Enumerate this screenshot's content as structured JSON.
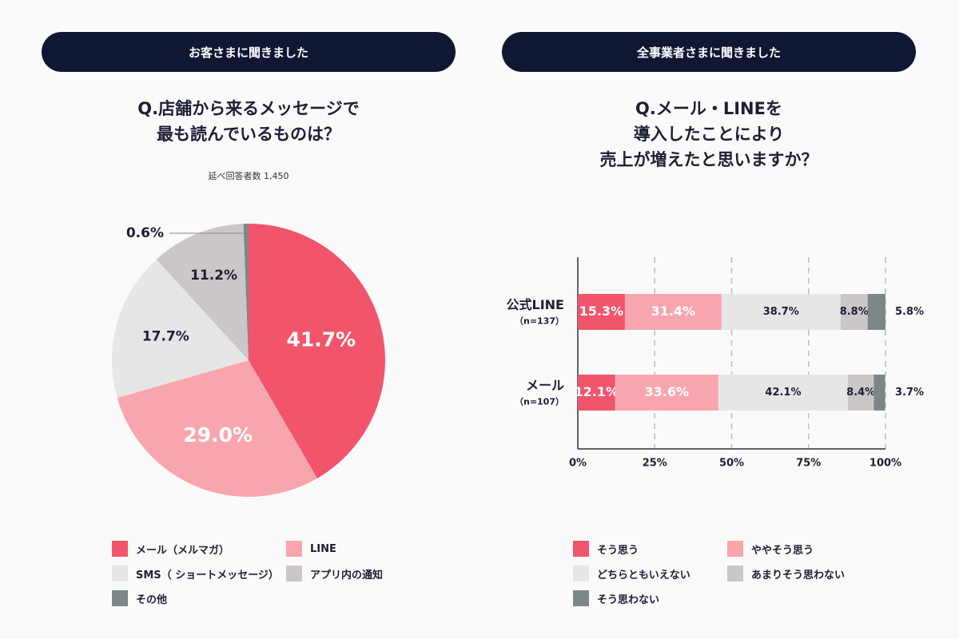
{
  "left": {
    "header": "お客さまに聞きました",
    "title_line1": "Q.店舗から来るメッセージで",
    "title_line2": "最も読んでいるものは？",
    "note": "延べ回答者数 1,450"
  },
  "right": {
    "header": "全事業者さまに聞きました",
    "title_line1": "Q.メール・LINEを",
    "title_line2": "導入したことにより",
    "title_line3": "売上が増えたと思いますか？"
  },
  "legend_left": [
    {
      "label": "メール（メルマガ）",
      "color": "#f2546b"
    },
    {
      "label": "LINE",
      "color": "#f8a6ae"
    },
    {
      "label": "SMS（ ショートメッセージ）",
      "color": "#e6e6e6"
    },
    {
      "label": "アプリ内の通知",
      "color": "#cbc7c7"
    },
    {
      "label": "その他",
      "color": "#7d8787"
    }
  ],
  "legend_right": [
    {
      "label": "そう思う",
      "color": "#f2546b"
    },
    {
      "label": "ややそう思う",
      "color": "#f8a6ae"
    },
    {
      "label": "どちらともいえない",
      "color": "#e6e6e6"
    },
    {
      "label": "あまりそう思わない",
      "color": "#cbc7c7"
    },
    {
      "label": "そう思わない",
      "color": "#7d8787"
    }
  ],
  "chart_data": [
    {
      "type": "pie",
      "title": "Q.店舗から来るメッセージで最も読んでいるものは？",
      "categories": [
        "メール（メルマガ）",
        "LINE",
        "SMS（ ショートメッセージ）",
        "アプリ内の通知",
        "その他"
      ],
      "values": [
        41.7,
        29.0,
        17.7,
        11.2,
        0.6
      ],
      "labels": [
        "41.7%",
        "29.0%",
        "17.7%",
        "11.2%",
        "0.6%"
      ],
      "colors": [
        "#f2546b",
        "#f8a6ae",
        "#e6e6e6",
        "#cbc7c7",
        "#7d8787"
      ],
      "label_colors": [
        "#ffffff",
        "#ffffff",
        "#1d1f35",
        "#1d1f35",
        "#1d1f35"
      ]
    },
    {
      "type": "bar",
      "orientation": "horizontal",
      "stacked": true,
      "title": "Q.メール・LINEを導入したことにより売上が増えたと思いますか？",
      "categories": [
        {
          "name": "公式LINE",
          "n": "（n=137）"
        },
        {
          "name": "メール",
          "n": "（n=107）"
        }
      ],
      "series": [
        {
          "name": "そう思う",
          "color": "#f2546b",
          "label_color": "#ffffff",
          "values": [
            15.3,
            12.1
          ],
          "labels": [
            "15.3%",
            "12.1%"
          ]
        },
        {
          "name": "ややそう思う",
          "color": "#f8a6ae",
          "label_color": "#ffffff",
          "values": [
            31.4,
            33.6
          ],
          "labels": [
            "31.4%",
            "33.6%"
          ]
        },
        {
          "name": "どちらともいえない",
          "color": "#e6e6e6",
          "label_color": "#1d1f35",
          "values": [
            38.7,
            42.1
          ],
          "labels": [
            "38.7%",
            "42.1%"
          ]
        },
        {
          "name": "あまりそう思わない",
          "color": "#cbc7c7",
          "label_color": "#1d1f35",
          "values": [
            8.8,
            8.4
          ],
          "labels": [
            "8.8%",
            "8.4%"
          ]
        },
        {
          "name": "そう思わない",
          "color": "#7d8787",
          "label_color": "#1d1f35",
          "values": [
            5.8,
            3.7
          ],
          "labels": [
            "5.8%",
            "3.7%"
          ]
        }
      ],
      "xticks": [
        "0%",
        "25%",
        "50%",
        "75%",
        "100%"
      ],
      "xlim": [
        0,
        100
      ],
      "grid": "dashed"
    }
  ]
}
